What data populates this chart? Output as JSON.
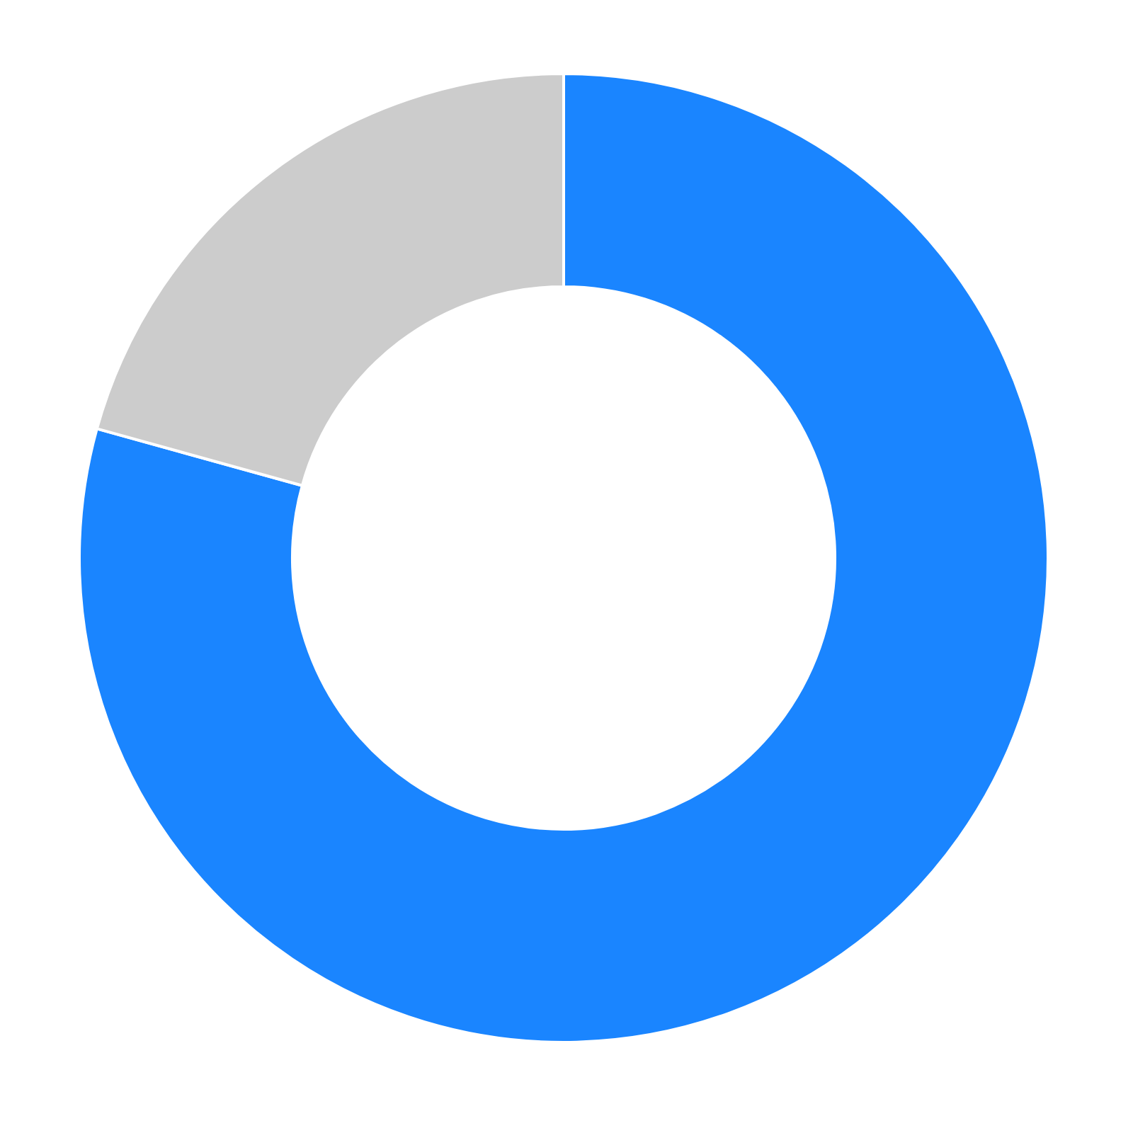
{
  "chart_data": {
    "type": "donut",
    "categories": [
      null,
      null
    ],
    "values": [
      79.3,
      20.7
    ],
    "colors": [
      "#1a85ff",
      "#cccccc"
    ]
  }
}
